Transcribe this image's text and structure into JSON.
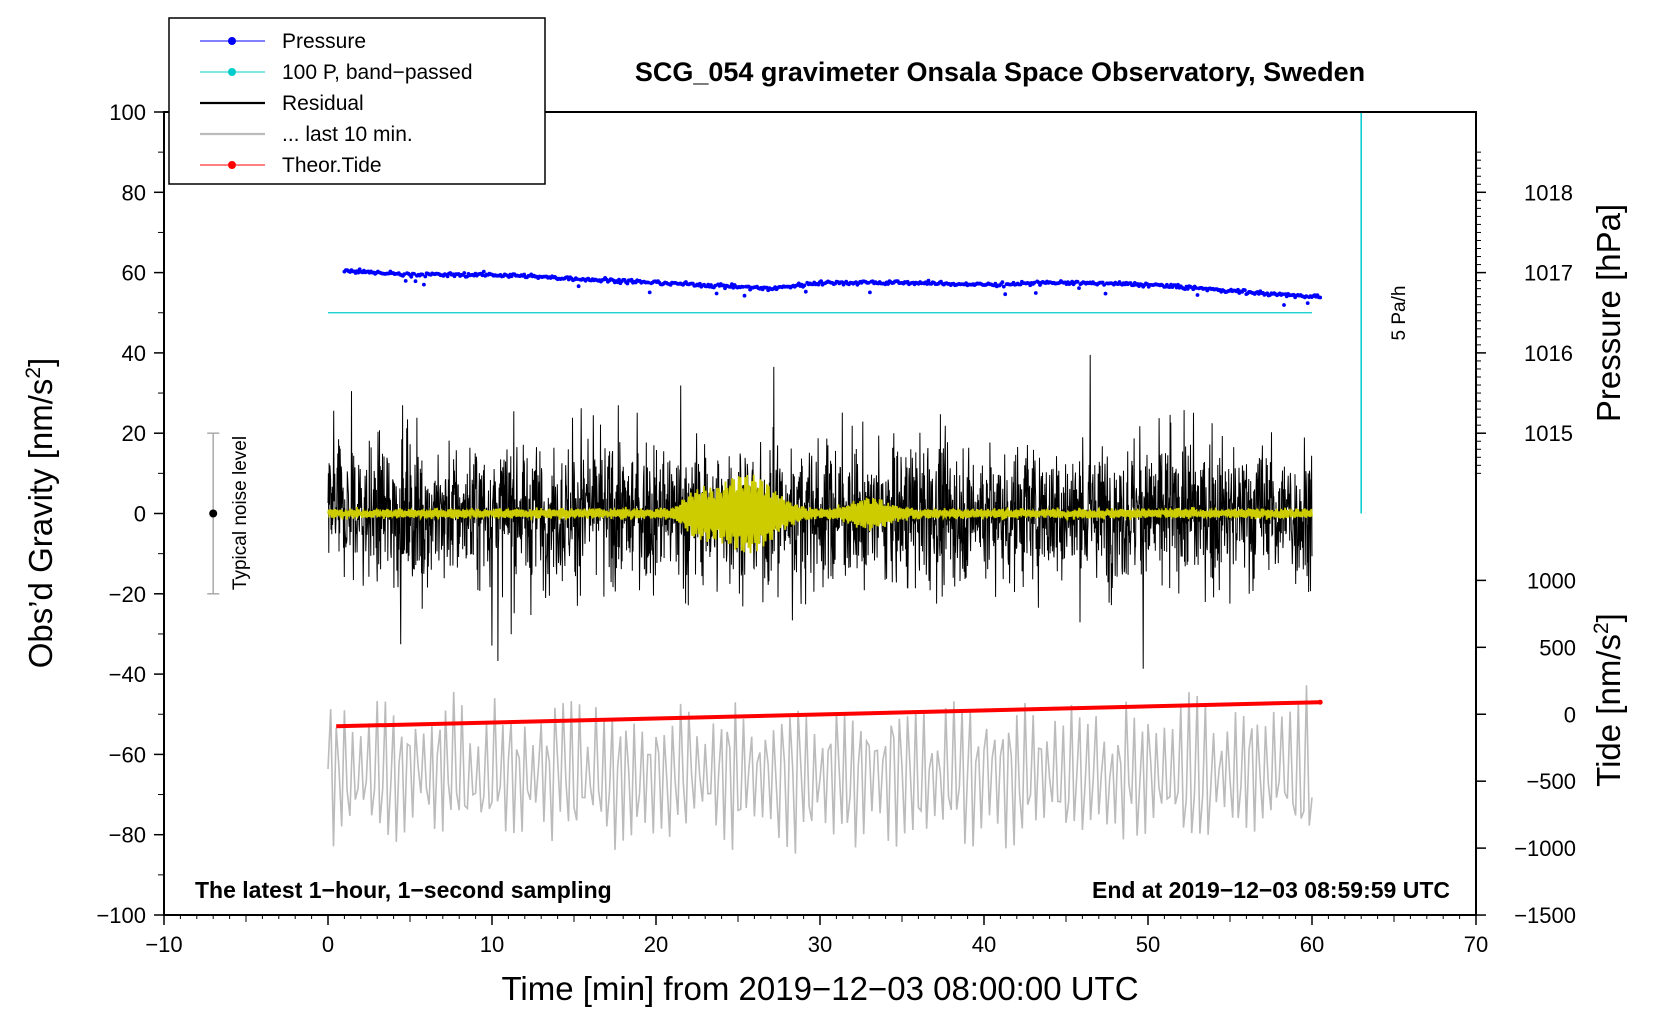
{
  "chart_data": {
    "type": "line",
    "title": "SCG_054 gravimeter Onsala Space Observatory, Sweden",
    "xlabel": "Time [min] from 2019−12−03 08:00:00 UTC",
    "ylabel_main": "Obs’d Gravity [nm/s",
    "ylabel_main_sup": "2",
    "ylabel_main_end": "]",
    "ylabel_pressure": "Pressure [hPa]",
    "ylabel_tide": "Tide [nm/s",
    "ylabel_tide_sup": "2",
    "ylabel_tide_end": "]",
    "xlim": [
      -10,
      70
    ],
    "ylim": [
      -100,
      100
    ],
    "x_ticks": [
      -10,
      0,
      10,
      20,
      30,
      40,
      50,
      60,
      70
    ],
    "x_tick_labels": [
      "−10",
      "0",
      "10",
      "20",
      "30",
      "40",
      "50",
      "60",
      "70"
    ],
    "y_ticks": [
      -100,
      -80,
      -60,
      -40,
      -20,
      0,
      20,
      40,
      60,
      80,
      100
    ],
    "y_tick_labels": [
      "−100",
      "−80",
      "−60",
      "−40",
      "−20",
      "0",
      "20",
      "40",
      "60",
      "80",
      "100"
    ],
    "pressure_axis": {
      "ticks": [
        1015,
        1016,
        1017,
        1018
      ],
      "tick_labels": [
        "1015",
        "1016",
        "1017",
        "1018"
      ],
      "gravity_at_1015": 20,
      "gravity_per_hPa": 20
    },
    "tide_axis": {
      "ticks": [
        -1500,
        -1000,
        -500,
        0,
        500,
        1000
      ],
      "tick_labels": [
        "−1500",
        "−1000",
        "−500",
        "0",
        "500",
        "1000"
      ],
      "gravity_at_0": -50,
      "gravity_per_500": 16.67
    },
    "legend": [
      {
        "label": "Pressure",
        "color": "#0000ff",
        "style": "line-dot"
      },
      {
        "label": "100 P, band−passed",
        "color": "#00cccc",
        "style": "line-dot"
      },
      {
        "label": "Residual",
        "color": "#000000",
        "style": "line"
      },
      {
        "label": "... last 10 min.",
        "color": "#bbbbbb",
        "style": "line"
      },
      {
        "label": "Theor.Tide",
        "color": "#ff0000",
        "style": "line-dot"
      }
    ],
    "series": [
      {
        "name": "Pressure",
        "color": "#0000ff",
        "x": [
          1,
          5,
          10,
          15,
          20,
          25,
          27,
          30,
          35,
          40,
          45,
          50,
          55,
          58,
          60.5
        ],
        "y": [
          60.5,
          59.5,
          59.5,
          58.5,
          57.5,
          56.5,
          56,
          57.5,
          57.5,
          57,
          57.5,
          57,
          55.5,
          54.5,
          54
        ]
      },
      {
        "name": "100 P, band−passed",
        "color": "#00cccc",
        "x": [
          0,
          60
        ],
        "y": [
          50,
          50
        ]
      },
      {
        "name": "Residual",
        "color": "#000000",
        "x_range": [
          0,
          60
        ],
        "amplitude_approx": 22,
        "mean": 0
      },
      {
        "name": "Residual smoothed",
        "color": "#cccc00",
        "x_range": [
          0,
          60
        ],
        "mean": 0,
        "burst_center": 25.5,
        "burst_amplitude_approx": 9
      },
      {
        "name": "... last 10 min.",
        "color": "#bbbbbb",
        "x_range": [
          0,
          60
        ],
        "mean": -65,
        "amplitude_approx": 20
      },
      {
        "name": "Theor.Tide",
        "color": "#ff0000",
        "x": [
          0.5,
          60.5
        ],
        "y": [
          -53,
          -47
        ]
      }
    ],
    "noise_bar": {
      "label": "Typical noise level",
      "x": -7,
      "center": 0,
      "low": -20,
      "high": 20
    },
    "rate_bar": {
      "label": "5 Pa/h",
      "x": 63,
      "low": 0,
      "high": 100,
      "color": "#00cccc"
    },
    "annotations": {
      "bottom_left": "The latest 1−hour, 1−second sampling",
      "bottom_right": "End at 2019−12−03 08:59:59 UTC"
    }
  }
}
